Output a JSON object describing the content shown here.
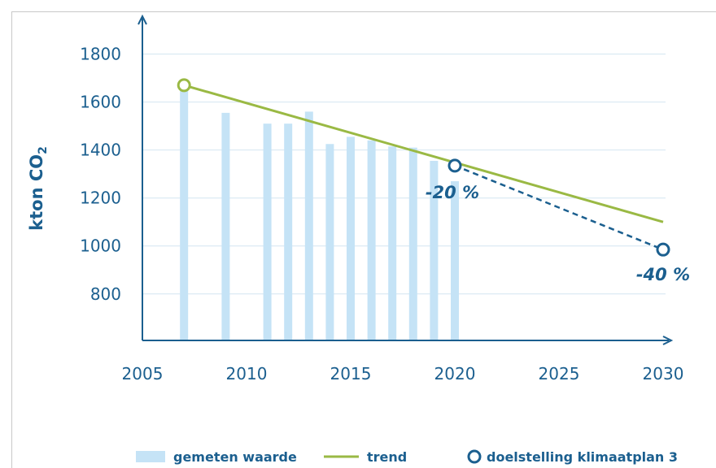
{
  "chart_data": {
    "type": "bar",
    "ylabel": "kton CO",
    "ylabel_subscript": "2",
    "xlim": [
      2005,
      2030
    ],
    "ylim": [
      630,
      1900
    ],
    "x_ticks": [
      2005,
      2010,
      2015,
      2020,
      2025,
      2030
    ],
    "y_ticks": [
      800,
      1000,
      1200,
      1400,
      1600,
      1800
    ],
    "grid": true,
    "legend_position": "bottom",
    "series": [
      {
        "name": "gemeten waarde",
        "type": "bar",
        "color": "#c5e3f6",
        "x": [
          2007,
          2009,
          2011,
          2012,
          2013,
          2014,
          2015,
          2016,
          2017,
          2018,
          2019,
          2020
        ],
        "values": [
          1650,
          1555,
          1510,
          1510,
          1560,
          1425,
          1455,
          1440,
          1415,
          1410,
          1355,
          1270
        ]
      },
      {
        "name": "trend",
        "type": "line",
        "color": "#9ab944",
        "x": [
          2007,
          2030
        ],
        "values": [
          1670,
          1100
        ]
      },
      {
        "name": "doelstelling klimaatplan 3",
        "type": "marker",
        "color": "#1b5f8f",
        "x": [
          2020,
          2030
        ],
        "values": [
          1335,
          985
        ],
        "labels": [
          "-20 %",
          "-40 %"
        ]
      }
    ],
    "trend_start_marker": {
      "x": 2007,
      "value": 1670
    }
  }
}
